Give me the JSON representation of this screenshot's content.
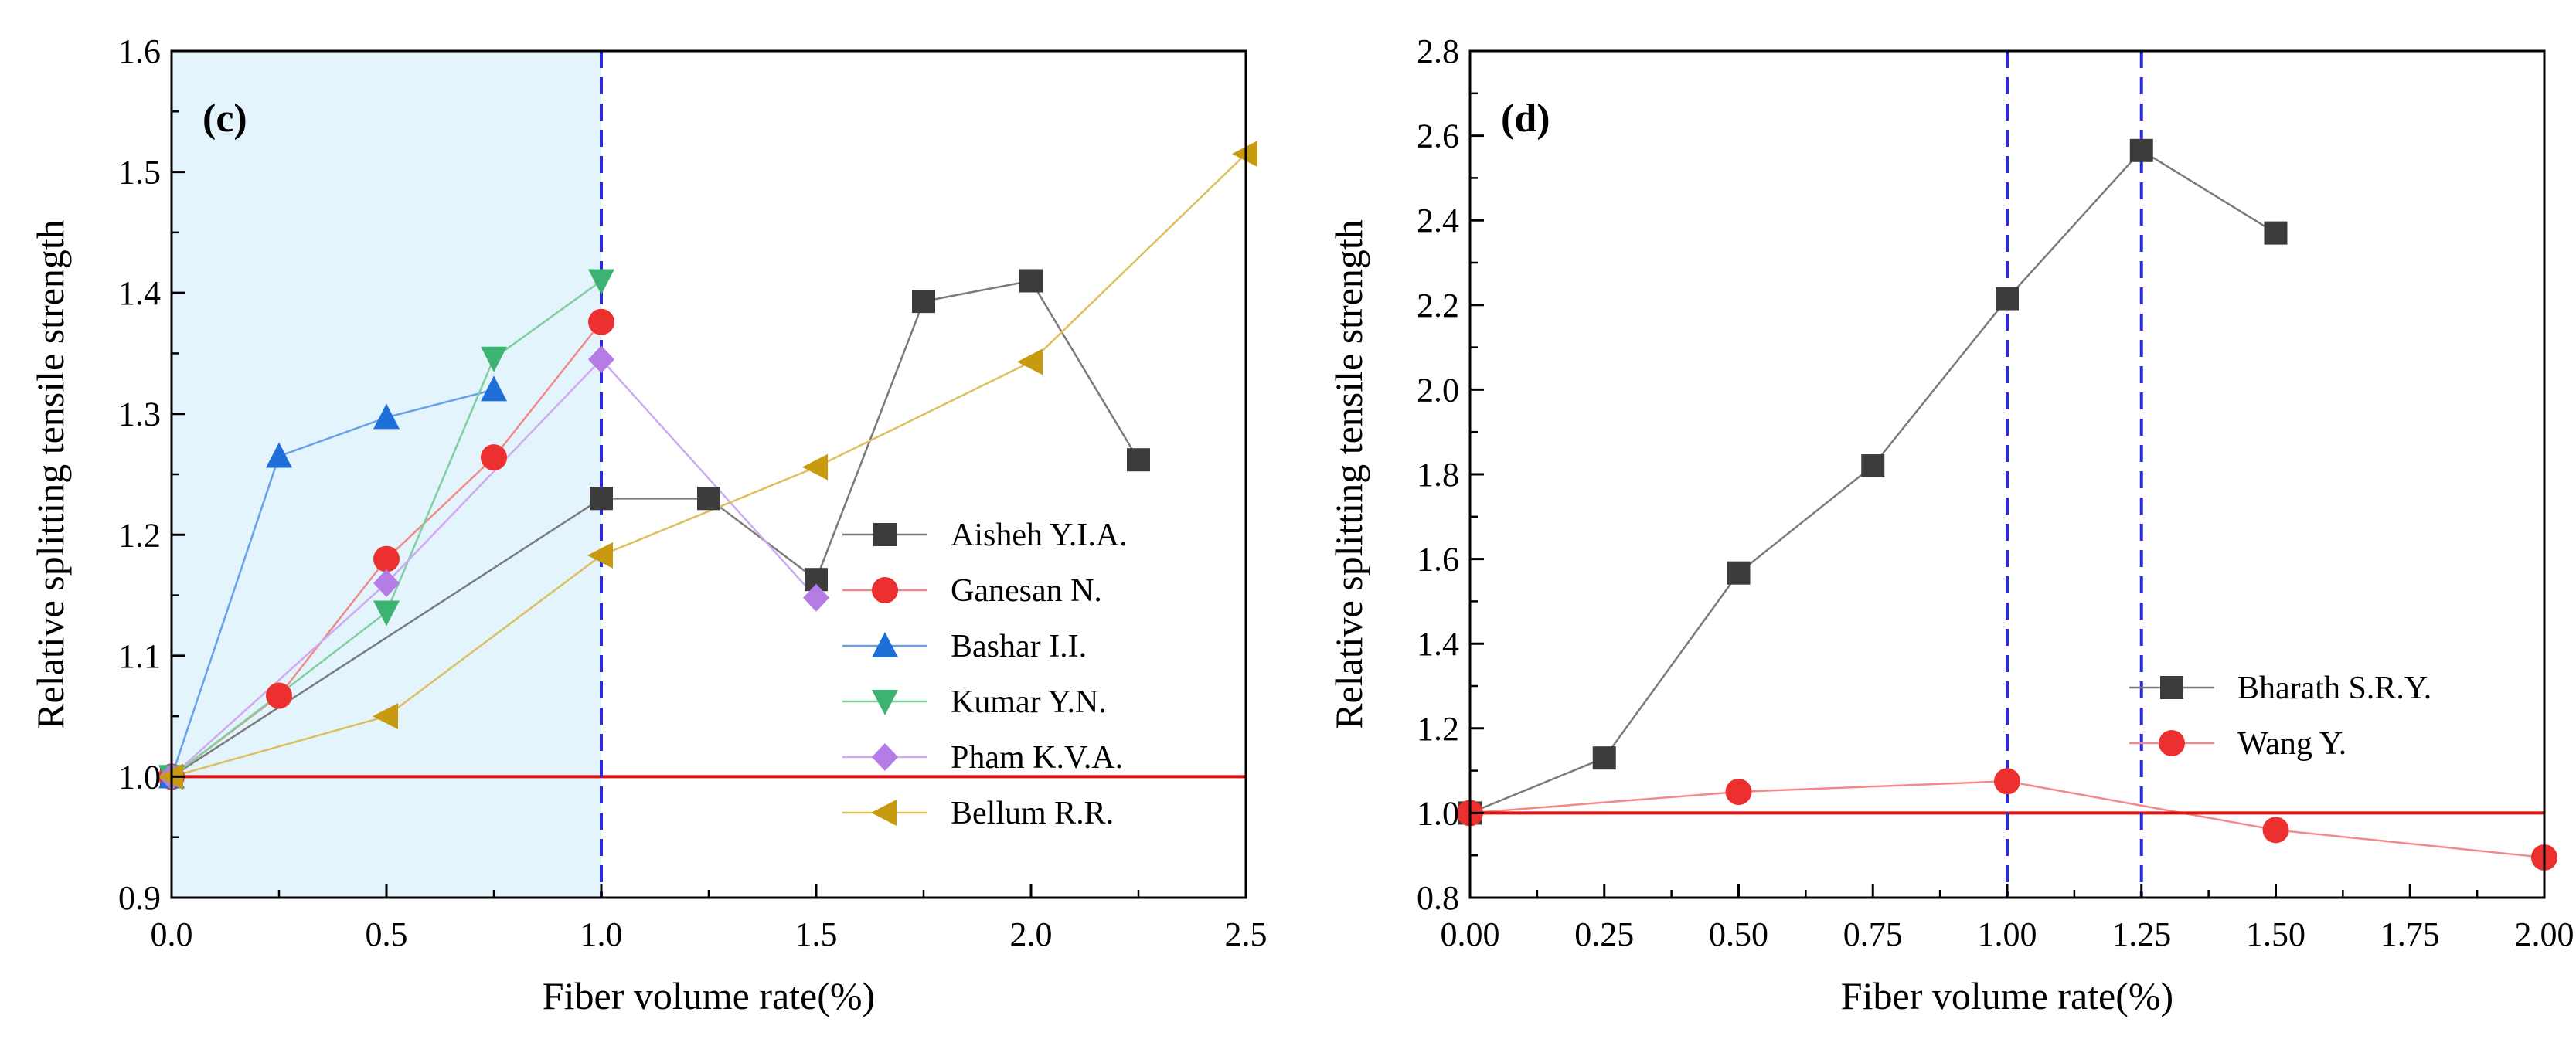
{
  "chart_data": [
    {
      "type": "line",
      "panel_label": "(c)",
      "xlabel": "Fiber volume rate(%)",
      "ylabel": "Relative splitting tensile strength",
      "xlim": [
        0.0,
        2.5
      ],
      "ylim": [
        0.9,
        1.6
      ],
      "xticks": [
        "0.0",
        "0.5",
        "1.0",
        "1.5",
        "2.0",
        "2.5"
      ],
      "yticks": [
        "0.9",
        "1.0",
        "1.1",
        "1.2",
        "1.3",
        "1.4",
        "1.5",
        "1.6"
      ],
      "shaded_region": [
        0.0,
        1.0
      ],
      "reference_line_y": 1.0,
      "vertical_lines_x": [
        1.0
      ],
      "legend_position": "lower-right",
      "series": [
        {
          "name": "Aisheh Y.I.A.",
          "marker": "square",
          "color": "#3c3c3c",
          "line_color": "#7a7a7a",
          "x": [
            0,
            1.0,
            1.25,
            1.5,
            1.75,
            2.0,
            2.25
          ],
          "y": [
            1.0,
            1.23,
            1.23,
            1.163,
            1.393,
            1.41,
            1.262
          ]
        },
        {
          "name": "Ganesan N.",
          "marker": "circle",
          "color": "#ec3030",
          "line_color": "#f28a8a",
          "x": [
            0,
            0.25,
            0.5,
            0.75,
            1.0
          ],
          "y": [
            1.0,
            1.067,
            1.18,
            1.264,
            1.376
          ]
        },
        {
          "name": "Bashar I.I.",
          "marker": "triangle-up",
          "color": "#1f6fd8",
          "line_color": "#6aa0e6",
          "x": [
            0,
            0.25,
            0.5,
            0.75
          ],
          "y": [
            1.0,
            1.265,
            1.297,
            1.32
          ]
        },
        {
          "name": "Kumar Y.N.",
          "marker": "triangle-down",
          "color": "#3cb371",
          "line_color": "#7fcf9f",
          "x": [
            0,
            0.5,
            0.75,
            1.0
          ],
          "y": [
            1.0,
            1.136,
            1.346,
            1.41
          ]
        },
        {
          "name": "Pham K.V.A.",
          "marker": "diamond",
          "color": "#b57ce6",
          "line_color": "#cfaaf0",
          "x": [
            0,
            0.5,
            1.0,
            1.5
          ],
          "y": [
            1.0,
            1.16,
            1.345,
            1.148
          ]
        },
        {
          "name": "Bellum R.R.",
          "marker": "triangle-left",
          "color": "#c79a10",
          "line_color": "#ddbf5c",
          "x": [
            0,
            0.5,
            1.0,
            1.5,
            2.0,
            2.5
          ],
          "y": [
            1.0,
            1.05,
            1.183,
            1.256,
            1.343,
            1.515
          ]
        }
      ]
    },
    {
      "type": "line",
      "panel_label": "(d)",
      "xlabel": "Fiber volume rate(%)",
      "ylabel": "Relative splitting tensile strength",
      "xlim": [
        0.0,
        2.0
      ],
      "ylim": [
        0.8,
        2.8
      ],
      "xticks": [
        "0.00",
        "0.25",
        "0.50",
        "0.75",
        "1.00",
        "1.25",
        "1.50",
        "1.75",
        "2.00"
      ],
      "yticks": [
        "0.8",
        "1.0",
        "1.2",
        "1.4",
        "1.6",
        "1.8",
        "2.0",
        "2.2",
        "2.4",
        "2.6",
        "2.8"
      ],
      "reference_line_y": 1.0,
      "vertical_lines_x": [
        1.0,
        1.25
      ],
      "legend_position": "lower-right",
      "series": [
        {
          "name": "Bharath S.R.Y.",
          "marker": "square",
          "color": "#3c3c3c",
          "line_color": "#7a7a7a",
          "x": [
            0,
            0.25,
            0.5,
            0.75,
            1.0,
            1.25,
            1.5
          ],
          "y": [
            1.0,
            1.13,
            1.567,
            1.82,
            2.215,
            2.565,
            2.37
          ]
        },
        {
          "name": "Wang Y.",
          "marker": "circle",
          "color": "#ec3030",
          "line_color": "#f28a8a",
          "x": [
            0,
            0.5,
            1.0,
            1.5,
            2.0
          ],
          "y": [
            1.0,
            1.05,
            1.075,
            0.96,
            0.895
          ]
        }
      ]
    }
  ]
}
